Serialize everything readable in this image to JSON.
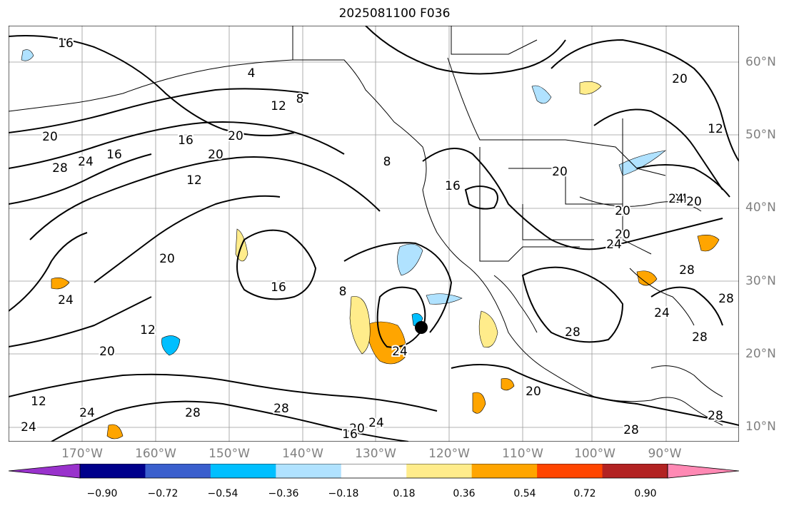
{
  "title": "2025081100 F036",
  "lat_labels": [
    "60°N",
    "50°N",
    "40°N",
    "30°N",
    "20°N",
    "10°N"
  ],
  "lon_labels": [
    "170°W",
    "160°W",
    "150°W",
    "140°W",
    "130°W",
    "120°W",
    "110°W",
    "100°W",
    "90°W"
  ],
  "colorbar": {
    "ticks": [
      "−0.90",
      "−0.72",
      "−0.54",
      "−0.36",
      "−0.18",
      "0.18",
      "0.36",
      "0.54",
      "0.72",
      "0.90"
    ],
    "colors": [
      "#9932cc",
      "#00008b",
      "#3a5fcd",
      "#00bfff",
      "#b0e2ff",
      "#ffffff",
      "#ffec8b",
      "#ffa500",
      "#ff4500",
      "#b22222",
      "#ff89b4"
    ]
  },
  "contour_labels": [
    "16",
    "4",
    "12",
    "8",
    "20",
    "28",
    "24",
    "16",
    "12",
    "20",
    "16",
    "20",
    "8",
    "16",
    "8",
    "20",
    "24",
    "20",
    "16",
    "8",
    "20",
    "24",
    "12",
    "20",
    "24",
    "12",
    "24",
    "28",
    "28",
    "24",
    "20",
    "16",
    "20",
    "28",
    "28",
    "24",
    "28",
    "20",
    "24",
    "20",
    "20",
    "24",
    "28",
    "28",
    "24",
    "28",
    "12"
  ],
  "storm_marker": "storm-center"
}
